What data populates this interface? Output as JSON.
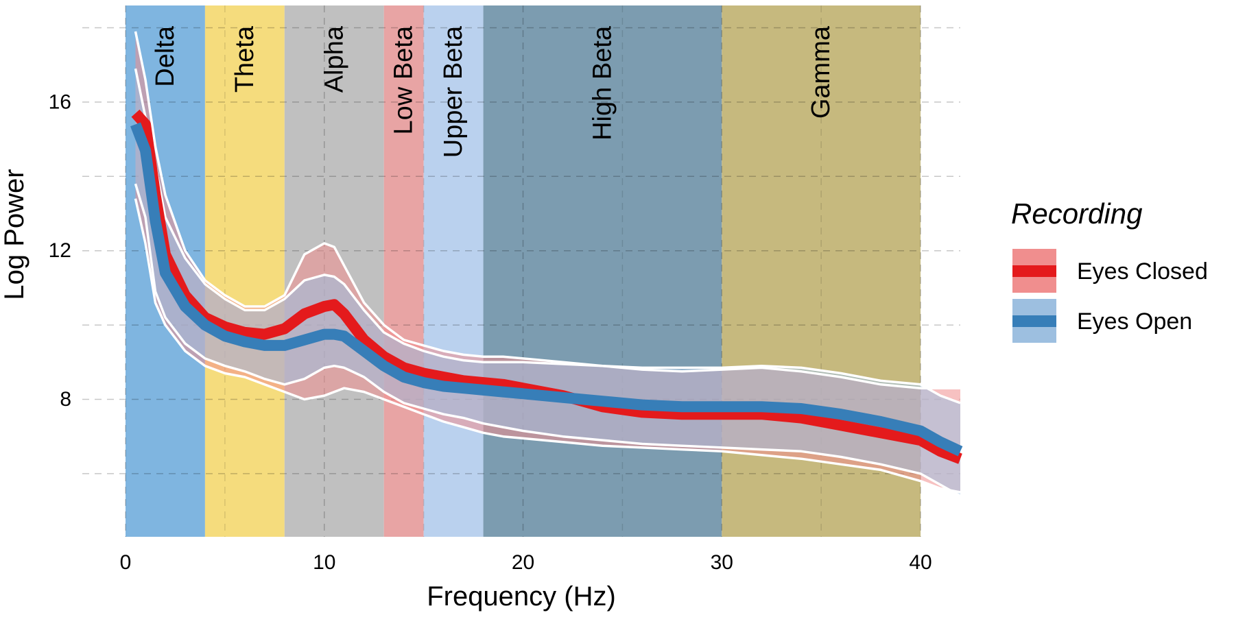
{
  "chart_data": {
    "type": "area",
    "title": "",
    "xlabel": "Frequency (Hz)",
    "ylabel": "Log Power",
    "xlim": [
      0,
      42
    ],
    "ylim": [
      4.3,
      18.6
    ],
    "x_ticks": [
      0,
      10,
      20,
      30,
      40
    ],
    "y_ticks": [
      8,
      12,
      16
    ],
    "y_minor_ticks": [
      6,
      10,
      14,
      18
    ],
    "grid": true,
    "legend_placement": "right",
    "legend": {
      "title": "Recording",
      "entries": [
        {
          "label": "Eyes Closed",
          "line_color": "#E41A1C",
          "fill_color": "#F08E8E"
        },
        {
          "label": "Eyes Open",
          "line_color": "#377EB8",
          "fill_color": "#9DBFE0"
        }
      ]
    },
    "bands": [
      {
        "label": "Delta",
        "from": 0,
        "to": 4,
        "color": "#7FB5E0"
      },
      {
        "label": "Theta",
        "from": 4,
        "to": 8,
        "color": "#F5DC7D"
      },
      {
        "label": "Alpha",
        "from": 8,
        "to": 13,
        "color": "#C0C0C0"
      },
      {
        "label": "Low Beta",
        "from": 13,
        "to": 15,
        "color": "#E8A4A4"
      },
      {
        "label": "Upper Beta",
        "from": 15,
        "to": 18,
        "color": "#BAD1EE"
      },
      {
        "label": "High Beta",
        "from": 18,
        "to": 30,
        "color": "#7C9CB0"
      },
      {
        "label": "Gamma",
        "from": 30,
        "to": 40,
        "color": "#C6B97E"
      }
    ],
    "x": [
      0.5,
      1,
      1.5,
      2,
      3,
      4,
      5,
      6,
      7,
      8,
      9,
      10,
      10.5,
      11,
      12,
      13,
      14,
      15,
      16,
      17,
      18,
      19,
      20,
      22,
      24,
      26,
      28,
      30,
      32,
      34,
      36,
      38,
      40,
      41,
      42
    ],
    "series": [
      {
        "name": "Eyes Closed",
        "color": "#E41A1C",
        "fill": "#F08E8E",
        "mean": [
          15.7,
          15.4,
          13.5,
          11.9,
          10.8,
          10.2,
          9.95,
          9.8,
          9.75,
          9.9,
          10.3,
          10.5,
          10.55,
          10.3,
          9.6,
          9.15,
          8.85,
          8.7,
          8.6,
          8.5,
          8.45,
          8.4,
          8.3,
          8.1,
          7.8,
          7.65,
          7.6,
          7.6,
          7.6,
          7.5,
          7.3,
          7.1,
          6.9,
          6.6,
          6.4
        ],
        "upper": [
          17.9,
          16.6,
          14.8,
          13.5,
          12.0,
          11.2,
          10.8,
          10.5,
          10.5,
          10.8,
          11.9,
          12.2,
          12.1,
          11.6,
          10.6,
          10.0,
          9.6,
          9.45,
          9.3,
          9.2,
          9.15,
          9.15,
          9.1,
          9.0,
          8.9,
          8.8,
          8.75,
          8.8,
          8.85,
          8.75,
          8.6,
          8.4,
          8.3,
          8.3,
          8.3
        ],
        "lower": [
          13.4,
          12.2,
          10.6,
          10.0,
          9.3,
          8.9,
          8.7,
          8.6,
          8.4,
          8.2,
          8.0,
          8.1,
          8.2,
          8.3,
          8.2,
          8.0,
          7.8,
          7.6,
          7.4,
          7.25,
          7.1,
          7.0,
          6.95,
          6.85,
          6.75,
          6.7,
          6.65,
          6.6,
          6.5,
          6.4,
          6.25,
          6.1,
          5.8,
          5.6,
          5.5
        ]
      },
      {
        "name": "Eyes Open",
        "color": "#377EB8",
        "fill": "#9DBFE0",
        "mean": [
          15.4,
          14.7,
          12.8,
          11.4,
          10.5,
          10.0,
          9.7,
          9.55,
          9.45,
          9.45,
          9.6,
          9.75,
          9.75,
          9.7,
          9.3,
          8.9,
          8.6,
          8.45,
          8.35,
          8.3,
          8.25,
          8.2,
          8.15,
          8.05,
          7.95,
          7.85,
          7.8,
          7.8,
          7.8,
          7.75,
          7.6,
          7.4,
          7.15,
          6.85,
          6.6
        ],
        "upper": [
          16.9,
          15.6,
          14.3,
          12.9,
          11.8,
          11.1,
          10.7,
          10.4,
          10.4,
          10.7,
          11.2,
          11.35,
          11.3,
          11.1,
          10.4,
          9.8,
          9.5,
          9.3,
          9.15,
          9.05,
          9.0,
          9.0,
          9.0,
          8.95,
          8.9,
          8.85,
          8.85,
          8.85,
          8.9,
          8.85,
          8.7,
          8.5,
          8.4,
          8.1,
          7.9
        ],
        "lower": [
          13.8,
          12.9,
          10.9,
          10.2,
          9.5,
          9.1,
          8.9,
          8.75,
          8.55,
          8.4,
          8.55,
          8.85,
          8.9,
          8.85,
          8.6,
          8.2,
          7.9,
          7.75,
          7.6,
          7.5,
          7.35,
          7.25,
          7.15,
          7.0,
          6.9,
          6.8,
          6.75,
          6.7,
          6.65,
          6.6,
          6.45,
          6.25,
          6.0,
          5.7,
          5.4
        ]
      }
    ]
  }
}
